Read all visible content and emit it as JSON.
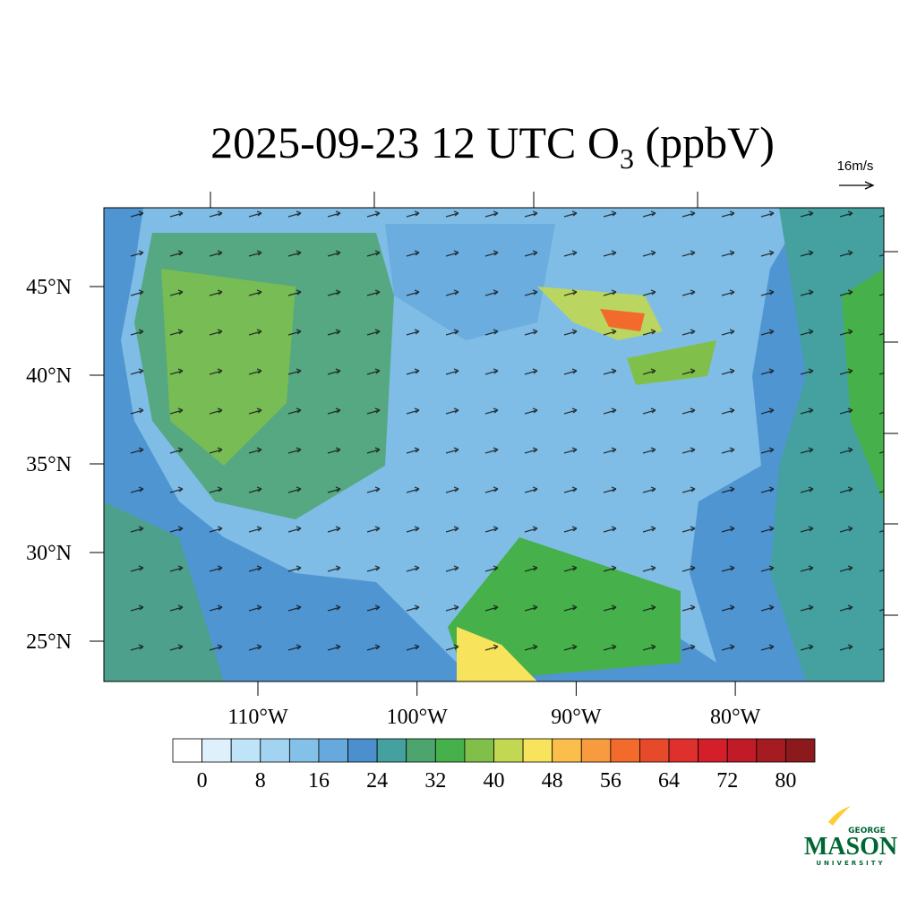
{
  "title_prefix": "2025-09-23 12 UTC O",
  "title_subscript": "3",
  "title_suffix": "(ppbV)",
  "wind_reference": "16m/s",
  "map": {
    "lat_ticks": [
      {
        "value": 45,
        "label": "45°N"
      },
      {
        "value": 40,
        "label": "40°N"
      },
      {
        "value": 35,
        "label": "35°N"
      },
      {
        "value": 30,
        "label": "30°N"
      },
      {
        "value": 25,
        "label": "25°N"
      }
    ],
    "lon_ticks": [
      {
        "value": -110,
        "label": "110°W"
      },
      {
        "value": -100,
        "label": "100°W"
      },
      {
        "value": -90,
        "label": "90°W"
      },
      {
        "value": -80,
        "label": "80°W"
      }
    ]
  },
  "colorbar": {
    "colors": [
      "#ffffff",
      "#ddf0fb",
      "#bfe3f7",
      "#a2d4f1",
      "#84c1e8",
      "#68a9dd",
      "#4b8fcc",
      "#45a0a0",
      "#4da56e",
      "#46b14a",
      "#80c04a",
      "#c2d752",
      "#f7e45c",
      "#fbbe4b",
      "#f89b3f",
      "#f26a2c",
      "#e74a2b",
      "#df302e",
      "#d41f2a",
      "#c01b26",
      "#a51b22",
      "#8c1a1d"
    ],
    "ticks": [
      0,
      8,
      16,
      24,
      32,
      40,
      48,
      56,
      64,
      72,
      80
    ]
  },
  "logo": {
    "top": "GEORGE",
    "main": "MASON",
    "bottom": "UNIVERSITY"
  }
}
